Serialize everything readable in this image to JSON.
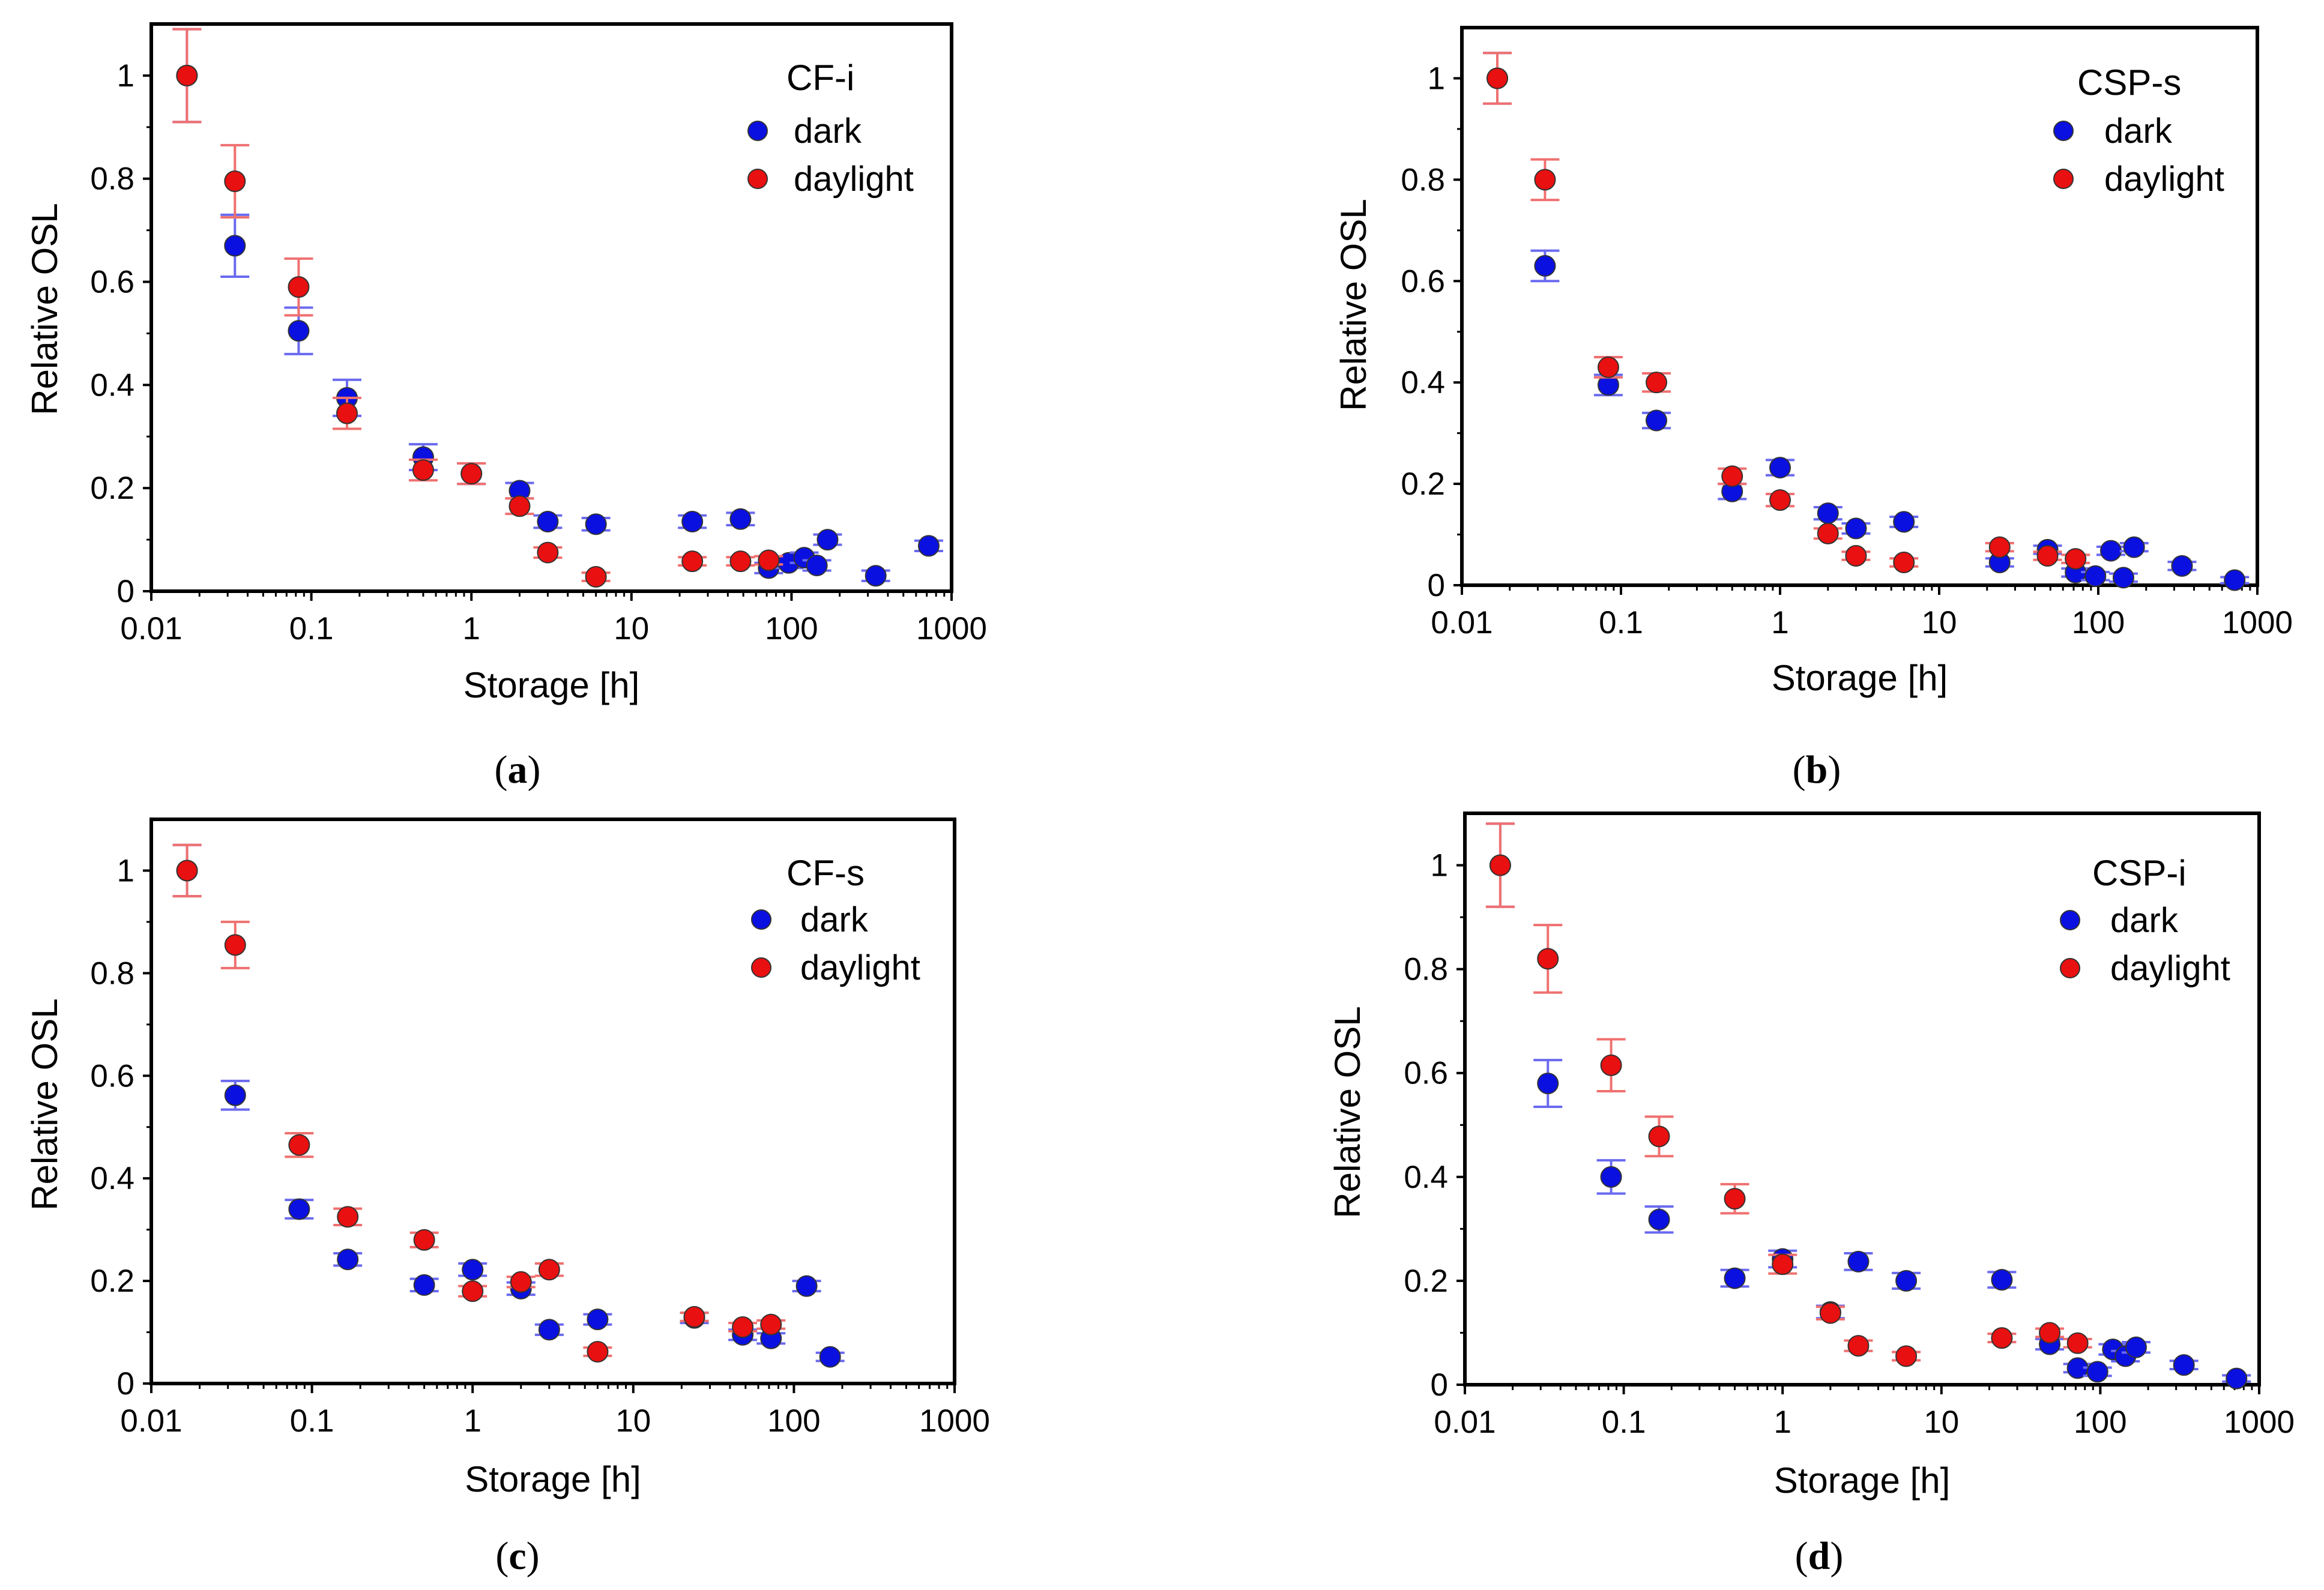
{
  "colors": {
    "dark": "#0a10e0",
    "daylight": "#e81010",
    "dark_err": "#6a6af0",
    "daylight_err": "#f07070"
  },
  "chart_data": [
    {
      "id": "a",
      "type": "scatter",
      "caption": "a",
      "xlabel": "Storage [h]",
      "ylabel": "Relative OSL",
      "xscale": "log",
      "xlim": [
        0.01,
        1000
      ],
      "ylim": [
        0,
        1.1
      ],
      "xticks": [
        "0.01",
        "0.1",
        "1",
        "10",
        "100",
        "1000"
      ],
      "yticks": [
        "0",
        "0.2",
        "0.4",
        "0.6",
        "0.8",
        "1"
      ],
      "legend": {
        "title": "CF-i",
        "position": "top-right"
      },
      "series": [
        {
          "name": "dark",
          "color": "#0a10e0",
          "points": [
            [
              0.0167,
              1.0,
              0.09
            ],
            [
              0.0333,
              0.67,
              0.06
            ],
            [
              0.0833,
              0.505,
              0.045
            ],
            [
              0.167,
              0.375,
              0.035
            ],
            [
              0.5,
              0.26,
              0.025
            ],
            [
              1,
              0.228,
              0.02
            ],
            [
              2,
              0.195,
              0.015
            ],
            [
              3,
              0.135,
              0.012
            ],
            [
              6,
              0.13,
              0.012
            ],
            [
              24,
              0.135,
              0.012
            ],
            [
              48,
              0.14,
              0.012
            ],
            [
              72,
              0.045,
              0.01
            ],
            [
              96,
              0.055,
              0.01
            ],
            [
              120,
              0.065,
              0.01
            ],
            [
              144,
              0.05,
              0.01
            ],
            [
              168,
              0.1,
              0.01
            ],
            [
              336,
              0.03,
              0.01
            ],
            [
              720,
              0.088,
              0.01
            ]
          ]
        },
        {
          "name": "daylight",
          "color": "#e81010",
          "points": [
            [
              0.0167,
              1.0,
              0.09
            ],
            [
              0.0333,
              0.795,
              0.07
            ],
            [
              0.0833,
              0.59,
              0.055
            ],
            [
              0.167,
              0.345,
              0.03
            ],
            [
              0.5,
              0.235,
              0.02
            ],
            [
              1,
              0.228,
              0.02
            ],
            [
              2,
              0.165,
              0.015
            ],
            [
              3,
              0.075,
              0.01
            ],
            [
              6,
              0.028,
              0.008
            ],
            [
              24,
              0.058,
              0.008
            ],
            [
              48,
              0.058,
              0.008
            ],
            [
              72,
              0.06,
              0.008
            ]
          ]
        }
      ]
    },
    {
      "id": "b",
      "type": "scatter",
      "caption": "b",
      "xlabel": "Storage [h]",
      "ylabel": "Relative OSL",
      "xscale": "log",
      "xlim": [
        0.01,
        1000
      ],
      "ylim": [
        0,
        1.1
      ],
      "xticks": [
        "0.01",
        "0.1",
        "1",
        "10",
        "100",
        "1000"
      ],
      "yticks": [
        "0",
        "0.2",
        "0.4",
        "0.6",
        "0.8",
        "1"
      ],
      "legend": {
        "title": "CSP-s",
        "position": "top-right"
      },
      "series": [
        {
          "name": "dark",
          "color": "#0a10e0",
          "points": [
            [
              0.0167,
              1.0,
              0.05
            ],
            [
              0.0333,
              0.63,
              0.03
            ],
            [
              0.0833,
              0.395,
              0.02
            ],
            [
              0.167,
              0.325,
              0.015
            ],
            [
              0.5,
              0.185,
              0.015
            ],
            [
              1,
              0.232,
              0.015
            ],
            [
              2,
              0.142,
              0.012
            ],
            [
              3,
              0.112,
              0.01
            ],
            [
              6,
              0.125,
              0.01
            ],
            [
              24,
              0.045,
              0.008
            ],
            [
              48,
              0.07,
              0.008
            ],
            [
              72,
              0.025,
              0.008
            ],
            [
              96,
              0.018,
              0.008
            ],
            [
              120,
              0.068,
              0.008
            ],
            [
              144,
              0.015,
              0.008
            ],
            [
              168,
              0.075,
              0.008
            ],
            [
              336,
              0.038,
              0.008
            ],
            [
              720,
              0.01,
              0.006
            ]
          ]
        },
        {
          "name": "daylight",
          "color": "#e81010",
          "points": [
            [
              0.0167,
              1.0,
              0.05
            ],
            [
              0.0333,
              0.8,
              0.04
            ],
            [
              0.0833,
              0.43,
              0.02
            ],
            [
              0.167,
              0.4,
              0.018
            ],
            [
              0.5,
              0.215,
              0.015
            ],
            [
              1,
              0.168,
              0.012
            ],
            [
              2,
              0.102,
              0.01
            ],
            [
              3,
              0.058,
              0.008
            ],
            [
              6,
              0.045,
              0.008
            ],
            [
              24,
              0.075,
              0.008
            ],
            [
              48,
              0.058,
              0.008
            ],
            [
              72,
              0.052,
              0.008
            ]
          ]
        }
      ]
    },
    {
      "id": "c",
      "type": "scatter",
      "caption": "c",
      "xlabel": "Storage [h]",
      "ylabel": "Relative OSL",
      "xscale": "log",
      "xlim": [
        0.01,
        1000
      ],
      "ylim": [
        0,
        1.1
      ],
      "xticks": [
        "0.01",
        "0.1",
        "1",
        "10",
        "100",
        "1000"
      ],
      "yticks": [
        "0",
        "0.2",
        "0.4",
        "0.6",
        "0.8",
        "1"
      ],
      "legend": {
        "title": "CF-s",
        "position": "top-right"
      },
      "series": [
        {
          "name": "dark",
          "color": "#0a10e0",
          "points": [
            [
              0.0167,
              1.0,
              0.05
            ],
            [
              0.0333,
              0.562,
              0.028
            ],
            [
              0.0833,
              0.34,
              0.018
            ],
            [
              0.167,
              0.242,
              0.012
            ],
            [
              0.5,
              0.192,
              0.012
            ],
            [
              1,
              0.222,
              0.012
            ],
            [
              2,
              0.185,
              0.012
            ],
            [
              3,
              0.105,
              0.01
            ],
            [
              6,
              0.125,
              0.01
            ],
            [
              24,
              0.128,
              0.01
            ],
            [
              48,
              0.095,
              0.01
            ],
            [
              72,
              0.088,
              0.01
            ],
            [
              120,
              0.19,
              0.01
            ],
            [
              168,
              0.052,
              0.008
            ]
          ]
        },
        {
          "name": "daylight",
          "color": "#e81010",
          "points": [
            [
              0.0167,
              1.0,
              0.05
            ],
            [
              0.0333,
              0.855,
              0.045
            ],
            [
              0.0833,
              0.465,
              0.023
            ],
            [
              0.167,
              0.325,
              0.016
            ],
            [
              0.5,
              0.28,
              0.014
            ],
            [
              1,
              0.18,
              0.01
            ],
            [
              2,
              0.198,
              0.01
            ],
            [
              3,
              0.222,
              0.012
            ],
            [
              6,
              0.062,
              0.008
            ],
            [
              24,
              0.13,
              0.008
            ],
            [
              48,
              0.11,
              0.008
            ],
            [
              72,
              0.115,
              0.008
            ]
          ]
        }
      ]
    },
    {
      "id": "d",
      "type": "scatter",
      "caption": "d",
      "xlabel": "Storage [h]",
      "ylabel": "Relative OSL",
      "xscale": "log",
      "xlim": [
        0.01,
        1000
      ],
      "ylim": [
        0,
        1.1
      ],
      "xticks": [
        "0.01",
        "0.1",
        "1",
        "10",
        "100",
        "1000"
      ],
      "yticks": [
        "0",
        "0.2",
        "0.4",
        "0.6",
        "0.8",
        "1"
      ],
      "legend": {
        "title": "CSP-i",
        "position": "top-right"
      },
      "series": [
        {
          "name": "dark",
          "color": "#0a10e0",
          "points": [
            [
              0.0167,
              1.0,
              0.08
            ],
            [
              0.0333,
              0.58,
              0.045
            ],
            [
              0.0833,
              0.4,
              0.032
            ],
            [
              0.167,
              0.318,
              0.025
            ],
            [
              0.5,
              0.205,
              0.016
            ],
            [
              1,
              0.242,
              0.016
            ],
            [
              2,
              0.14,
              0.012
            ],
            [
              3,
              0.237,
              0.016
            ],
            [
              6,
              0.2,
              0.015
            ],
            [
              24,
              0.202,
              0.015
            ],
            [
              48,
              0.078,
              0.01
            ],
            [
              72,
              0.032,
              0.008
            ],
            [
              96,
              0.025,
              0.008
            ],
            [
              120,
              0.068,
              0.01
            ],
            [
              144,
              0.055,
              0.01
            ],
            [
              168,
              0.072,
              0.01
            ],
            [
              336,
              0.038,
              0.008
            ],
            [
              720,
              0.012,
              0.006
            ]
          ]
        },
        {
          "name": "daylight",
          "color": "#e81010",
          "points": [
            [
              0.0167,
              1.0,
              0.08
            ],
            [
              0.0333,
              0.82,
              0.065
            ],
            [
              0.0833,
              0.615,
              0.05
            ],
            [
              0.167,
              0.478,
              0.038
            ],
            [
              0.5,
              0.358,
              0.028
            ],
            [
              1,
              0.232,
              0.018
            ],
            [
              2,
              0.138,
              0.012
            ],
            [
              3,
              0.075,
              0.01
            ],
            [
              6,
              0.055,
              0.008
            ],
            [
              24,
              0.09,
              0.008
            ],
            [
              48,
              0.1,
              0.008
            ],
            [
              72,
              0.08,
              0.008
            ]
          ]
        }
      ]
    }
  ]
}
